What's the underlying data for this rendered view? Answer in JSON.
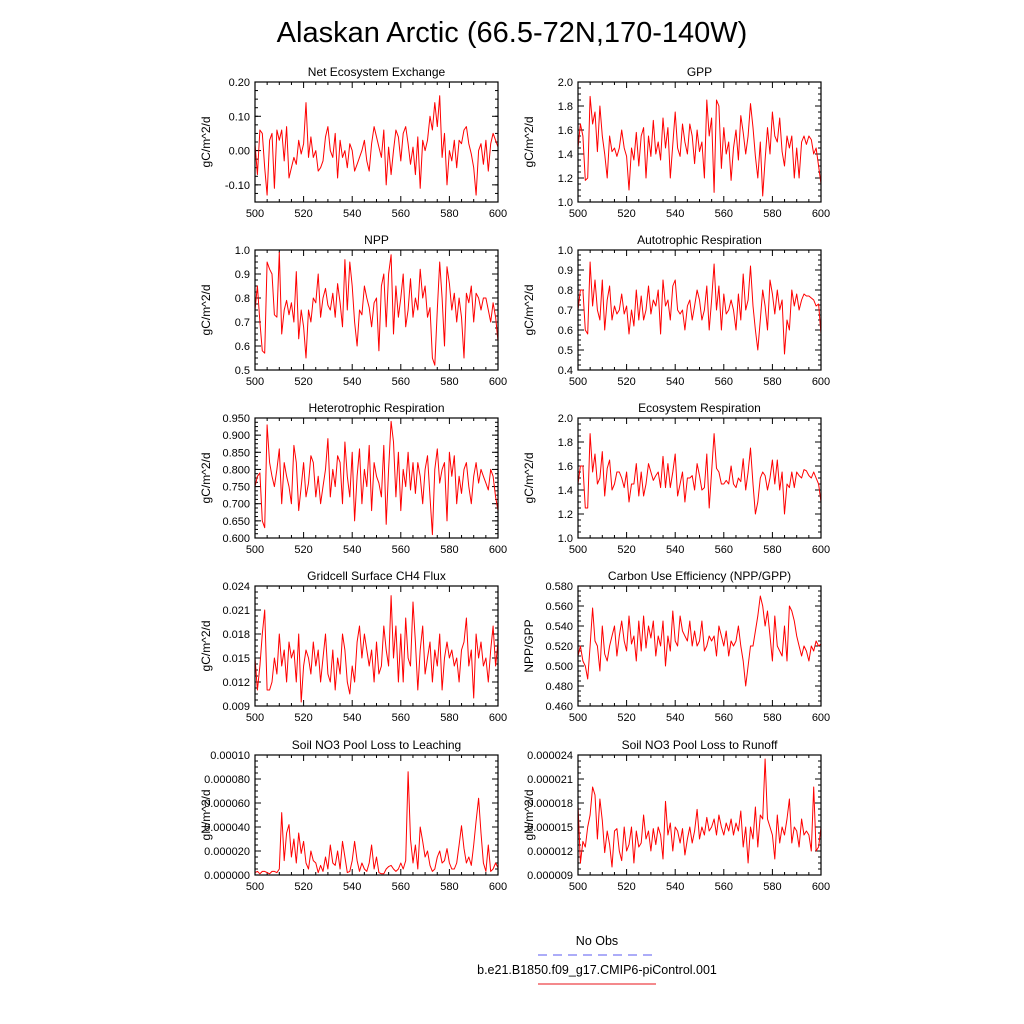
{
  "title": "Alaskan Arctic (66.5-72N,170-140W)",
  "legend": [
    {
      "label": "No Obs",
      "color": "#5a5af0",
      "dash": true
    },
    {
      "label": "b.e21.B1850.f09_g17.CMIP6-piControl.001",
      "color": "#e8131a",
      "dash": false
    }
  ],
  "line_color": "#ff0000",
  "chart_data": [
    {
      "type": "line",
      "title": "Net Ecosystem Exchange",
      "ylabel": "gC/m^2/d",
      "xlim": [
        500,
        600
      ],
      "ylim": [
        -0.15,
        0.2
      ],
      "xticks": [
        "500",
        "520",
        "540",
        "560",
        "580",
        "600"
      ],
      "yticks": [
        "-0.10",
        "0.00",
        "0.10",
        "0.20"
      ],
      "x0": 500,
      "values": [
        0.02,
        -0.07,
        0.06,
        0.05,
        -0.05,
        -0.13,
        0.03,
        0.05,
        -0.11,
        0.06,
        0.03,
        0.06,
        -0.03,
        0.07,
        -0.08,
        -0.05,
        -0.02,
        -0.04,
        0.03,
        -0.01,
        0.02,
        0.14,
        -0.02,
        0.04,
        -0.02,
        0.0,
        -0.06,
        -0.05,
        -0.03,
        0.04,
        0.07,
        0.0,
        -0.02,
        0.05,
        -0.08,
        0.03,
        -0.02,
        0.0,
        -0.05,
        0.02,
        0.0,
        -0.06,
        -0.04,
        -0.02,
        0.0,
        0.03,
        -0.03,
        -0.06,
        0.02,
        0.07,
        0.04,
        0.01,
        -0.02,
        0.06,
        -0.1,
        0.01,
        -0.07,
        0.0,
        0.06,
        0.04,
        -0.03,
        0.05,
        0.07,
        0.02,
        -0.04,
        0.01,
        -0.07,
        0.04,
        -0.11,
        0.03,
        0.0,
        0.03,
        0.1,
        0.06,
        0.14,
        0.07,
        0.16,
        -0.02,
        0.05,
        -0.1,
        0.0,
        -0.03,
        0.03,
        -0.05,
        0.03,
        0.02,
        0.06,
        0.07,
        0.02,
        -0.01,
        -0.05,
        -0.13,
        0.0,
        0.02,
        -0.04,
        0.03,
        -0.06,
        0.02,
        0.05,
        0.03,
        0.01
      ]
    },
    {
      "type": "line",
      "title": "GPP",
      "ylabel": "gC/m^2/d",
      "xlim": [
        500,
        600
      ],
      "ylim": [
        1.0,
        2.0
      ],
      "xticks": [
        "500",
        "520",
        "540",
        "560",
        "580",
        "600"
      ],
      "yticks": [
        "1.0",
        "1.2",
        "1.4",
        "1.6",
        "1.8",
        "2.0"
      ],
      "x0": 500,
      "values": [
        1.45,
        1.65,
        1.55,
        1.18,
        1.2,
        1.88,
        1.65,
        1.75,
        1.42,
        1.8,
        1.55,
        1.4,
        1.2,
        1.55,
        1.42,
        1.45,
        1.38,
        1.45,
        1.6,
        1.45,
        1.38,
        1.1,
        1.45,
        1.35,
        1.58,
        1.3,
        1.55,
        1.62,
        1.2,
        1.55,
        1.38,
        1.68,
        1.4,
        1.5,
        1.35,
        1.7,
        1.45,
        1.62,
        1.2,
        1.48,
        1.75,
        1.45,
        1.38,
        1.65,
        1.5,
        1.4,
        1.65,
        1.55,
        1.32,
        1.6,
        1.42,
        1.5,
        1.2,
        1.85,
        1.55,
        1.7,
        1.08,
        1.85,
        1.8,
        1.28,
        1.62,
        1.4,
        1.5,
        1.18,
        1.45,
        1.6,
        1.35,
        1.72,
        1.58,
        1.4,
        1.55,
        1.82,
        1.62,
        1.38,
        1.2,
        1.5,
        1.05,
        1.35,
        1.62,
        1.4,
        1.75,
        1.55,
        1.5,
        1.7,
        1.42,
        1.3,
        1.55,
        1.45,
        1.55,
        1.2,
        1.45,
        1.2,
        1.5,
        1.55,
        1.48,
        1.55,
        1.52,
        1.4,
        1.45,
        1.3,
        1.15
      ]
    },
    {
      "type": "line",
      "title": "NPP",
      "ylabel": "gC/m^2/d",
      "xlim": [
        500,
        600
      ],
      "ylim": [
        0.5,
        1.0
      ],
      "xticks": [
        "500",
        "520",
        "540",
        "560",
        "580",
        "600"
      ],
      "yticks": [
        "0.5",
        "0.6",
        "0.7",
        "0.8",
        "0.9",
        "1.0"
      ],
      "x0": 500,
      "values": [
        0.75,
        0.85,
        0.7,
        0.58,
        0.57,
        0.95,
        0.92,
        0.9,
        0.73,
        0.72,
        0.99,
        0.65,
        0.75,
        0.79,
        0.73,
        0.78,
        0.7,
        0.91,
        0.63,
        0.75,
        0.68,
        0.55,
        0.75,
        0.7,
        0.8,
        0.78,
        0.9,
        0.72,
        0.8,
        0.84,
        0.77,
        0.75,
        0.82,
        0.72,
        0.86,
        0.78,
        0.68,
        0.96,
        0.75,
        0.95,
        0.85,
        0.7,
        0.6,
        0.75,
        0.73,
        0.85,
        0.8,
        0.76,
        0.68,
        0.78,
        0.8,
        0.58,
        0.85,
        0.9,
        0.68,
        0.9,
        0.98,
        0.65,
        0.85,
        0.72,
        0.8,
        0.9,
        0.68,
        0.75,
        0.88,
        0.72,
        0.8,
        0.75,
        0.92,
        0.8,
        0.85,
        0.72,
        0.76,
        0.55,
        0.52,
        0.75,
        0.95,
        0.8,
        0.6,
        0.93,
        0.86,
        0.75,
        0.82,
        0.7,
        0.8,
        0.72,
        0.55,
        0.82,
        0.78,
        0.85,
        0.7,
        0.82,
        0.8,
        0.75,
        0.8,
        0.8,
        0.75,
        0.7,
        0.78,
        0.72,
        0.62
      ]
    },
    {
      "type": "line",
      "title": "Autotrophic Respiration",
      "ylabel": "gC/m^2/d",
      "xlim": [
        500,
        600
      ],
      "ylim": [
        0.4,
        1.0
      ],
      "xticks": [
        "500",
        "520",
        "540",
        "560",
        "580",
        "600"
      ],
      "yticks": [
        "0.4",
        "0.5",
        "0.6",
        "0.7",
        "0.8",
        "0.9",
        "1.0"
      ],
      "x0": 500,
      "values": [
        0.7,
        0.8,
        0.8,
        0.6,
        0.58,
        0.94,
        0.72,
        0.85,
        0.7,
        0.65,
        0.85,
        0.6,
        0.75,
        0.82,
        0.65,
        0.72,
        0.68,
        0.7,
        0.78,
        0.68,
        0.72,
        0.58,
        0.7,
        0.62,
        0.8,
        0.65,
        0.77,
        0.65,
        0.7,
        0.82,
        0.68,
        0.75,
        0.72,
        0.8,
        0.58,
        0.85,
        0.72,
        0.75,
        0.65,
        0.82,
        0.85,
        0.7,
        0.68,
        0.7,
        0.6,
        0.72,
        0.75,
        0.65,
        0.72,
        0.8,
        0.75,
        0.65,
        0.7,
        0.82,
        0.6,
        0.75,
        0.93,
        0.7,
        0.82,
        0.6,
        0.78,
        0.68,
        0.7,
        0.75,
        0.7,
        0.6,
        0.78,
        0.65,
        0.88,
        0.7,
        0.75,
        0.92,
        0.72,
        0.6,
        0.5,
        0.65,
        0.8,
        0.72,
        0.6,
        0.85,
        0.78,
        0.68,
        0.8,
        0.7,
        0.75,
        0.48,
        0.65,
        0.6,
        0.8,
        0.72,
        0.78,
        0.7,
        0.75,
        0.78,
        0.77,
        0.77,
        0.76,
        0.75,
        0.72,
        0.73,
        0.58
      ]
    },
    {
      "type": "line",
      "title": "Heterotrophic Respiration",
      "ylabel": "gC/m^2/d",
      "xlim": [
        500,
        600
      ],
      "ylim": [
        0.6,
        0.95
      ],
      "xticks": [
        "500",
        "520",
        "540",
        "560",
        "580",
        "600"
      ],
      "yticks": [
        "0.600",
        "0.650",
        "0.700",
        "0.750",
        "0.800",
        "0.850",
        "0.900",
        "0.950"
      ],
      "x0": 500,
      "values": [
        0.75,
        0.78,
        0.79,
        0.65,
        0.63,
        0.93,
        0.82,
        0.78,
        0.75,
        0.8,
        0.86,
        0.7,
        0.82,
        0.78,
        0.75,
        0.7,
        0.87,
        0.82,
        0.68,
        0.75,
        0.82,
        0.72,
        0.76,
        0.84,
        0.82,
        0.72,
        0.78,
        0.7,
        0.75,
        0.8,
        0.89,
        0.72,
        0.8,
        0.75,
        0.84,
        0.82,
        0.7,
        0.88,
        0.78,
        0.72,
        0.85,
        0.65,
        0.78,
        0.86,
        0.7,
        0.8,
        0.75,
        0.87,
        0.68,
        0.82,
        0.78,
        0.76,
        0.72,
        0.87,
        0.64,
        0.8,
        0.94,
        0.88,
        0.72,
        0.85,
        0.68,
        0.8,
        0.75,
        0.85,
        0.74,
        0.82,
        0.73,
        0.82,
        0.78,
        0.7,
        0.8,
        0.84,
        0.72,
        0.61,
        0.8,
        0.86,
        0.76,
        0.8,
        0.82,
        0.65,
        0.85,
        0.78,
        0.84,
        0.7,
        0.78,
        0.73,
        0.8,
        0.82,
        0.75,
        0.7,
        0.78,
        0.82,
        0.76,
        0.8,
        0.78,
        0.76,
        0.74,
        0.8,
        0.78,
        0.72,
        0.68
      ]
    },
    {
      "type": "line",
      "title": "Ecosystem Respiration",
      "ylabel": "gC/m^2/d",
      "xlim": [
        500,
        600
      ],
      "ylim": [
        1.0,
        2.0
      ],
      "xticks": [
        "500",
        "520",
        "540",
        "560",
        "580",
        "600"
      ],
      "yticks": [
        "1.0",
        "1.2",
        "1.4",
        "1.6",
        "1.8",
        "2.0"
      ],
      "x0": 500,
      "values": [
        1.45,
        1.6,
        1.6,
        1.25,
        1.25,
        1.87,
        1.55,
        1.7,
        1.45,
        1.5,
        1.72,
        1.35,
        1.58,
        1.65,
        1.4,
        1.45,
        1.55,
        1.55,
        1.5,
        1.42,
        1.55,
        1.3,
        1.45,
        1.45,
        1.62,
        1.35,
        1.55,
        1.35,
        1.45,
        1.62,
        1.55,
        1.48,
        1.52,
        1.55,
        1.42,
        1.68,
        1.42,
        1.62,
        1.42,
        1.55,
        1.7,
        1.35,
        1.45,
        1.55,
        1.3,
        1.5,
        1.5,
        1.52,
        1.4,
        1.62,
        1.52,
        1.4,
        1.42,
        1.7,
        1.25,
        1.55,
        1.87,
        1.58,
        1.55,
        1.45,
        1.45,
        1.48,
        1.45,
        1.6,
        1.45,
        1.42,
        1.5,
        1.47,
        1.66,
        1.4,
        1.55,
        1.75,
        1.45,
        1.2,
        1.3,
        1.5,
        1.55,
        1.52,
        1.4,
        1.5,
        1.65,
        1.45,
        1.65,
        1.4,
        1.55,
        1.2,
        1.45,
        1.42,
        1.55,
        1.42,
        1.55,
        1.52,
        1.5,
        1.57,
        1.56,
        1.52,
        1.5,
        1.55,
        1.5,
        1.45,
        1.3
      ]
    },
    {
      "type": "line",
      "title": "Gridcell Surface CH4 Flux",
      "ylabel": "gC/m^2/d",
      "xlim": [
        500,
        600
      ],
      "ylim": [
        0.009,
        0.024
      ],
      "xticks": [
        "500",
        "520",
        "540",
        "560",
        "580",
        "600"
      ],
      "yticks": [
        "0.009",
        "0.012",
        "0.015",
        "0.018",
        "0.021",
        "0.024"
      ],
      "x0": 500,
      "values": [
        0.015,
        0.011,
        0.014,
        0.018,
        0.021,
        0.011,
        0.011,
        0.012,
        0.015,
        0.013,
        0.018,
        0.014,
        0.016,
        0.012,
        0.017,
        0.015,
        0.016,
        0.012,
        0.018,
        0.0095,
        0.014,
        0.016,
        0.015,
        0.013,
        0.017,
        0.014,
        0.016,
        0.012,
        0.015,
        0.018,
        0.013,
        0.012,
        0.016,
        0.011,
        0.015,
        0.013,
        0.018,
        0.016,
        0.012,
        0.0105,
        0.014,
        0.012,
        0.017,
        0.019,
        0.015,
        0.018,
        0.016,
        0.014,
        0.016,
        0.012,
        0.017,
        0.013,
        0.014,
        0.019,
        0.016,
        0.014,
        0.0228,
        0.015,
        0.019,
        0.012,
        0.018,
        0.012,
        0.02,
        0.015,
        0.014,
        0.022,
        0.017,
        0.011,
        0.016,
        0.019,
        0.013,
        0.015,
        0.017,
        0.012,
        0.016,
        0.014,
        0.018,
        0.011,
        0.015,
        0.017,
        0.015,
        0.016,
        0.014,
        0.015,
        0.012,
        0.016,
        0.017,
        0.02,
        0.014,
        0.016,
        0.01,
        0.018,
        0.015,
        0.017,
        0.014,
        0.015,
        0.012,
        0.016,
        0.019,
        0.014,
        0.017
      ]
    },
    {
      "type": "line",
      "title": "Carbon Use Efficiency (NPP/GPP)",
      "ylabel": "NPP/GPP",
      "xlim": [
        500,
        600
      ],
      "ylim": [
        0.46,
        0.58
      ],
      "xticks": [
        "500",
        "520",
        "540",
        "560",
        "580",
        "600"
      ],
      "yticks": [
        "0.460",
        "0.480",
        "0.500",
        "0.520",
        "0.540",
        "0.560",
        "0.580"
      ],
      "x0": 500,
      "values": [
        0.51,
        0.52,
        0.505,
        0.5,
        0.487,
        0.52,
        0.558,
        0.525,
        0.52,
        0.495,
        0.54,
        0.512,
        0.505,
        0.52,
        0.53,
        0.54,
        0.51,
        0.53,
        0.545,
        0.525,
        0.515,
        0.55,
        0.522,
        0.53,
        0.505,
        0.545,
        0.515,
        0.55,
        0.518,
        0.54,
        0.528,
        0.545,
        0.51,
        0.53,
        0.52,
        0.545,
        0.5,
        0.53,
        0.515,
        0.555,
        0.525,
        0.52,
        0.55,
        0.535,
        0.53,
        0.525,
        0.545,
        0.52,
        0.535,
        0.52,
        0.525,
        0.545,
        0.515,
        0.52,
        0.53,
        0.525,
        0.53,
        0.51,
        0.54,
        0.53,
        0.52,
        0.535,
        0.51,
        0.525,
        0.52,
        0.525,
        0.54,
        0.52,
        0.505,
        0.48,
        0.5,
        0.52,
        0.52,
        0.535,
        0.55,
        0.57,
        0.56,
        0.54,
        0.555,
        0.53,
        0.505,
        0.55,
        0.52,
        0.515,
        0.51,
        0.54,
        0.505,
        0.56,
        0.555,
        0.545,
        0.53,
        0.52,
        0.51,
        0.52,
        0.515,
        0.505,
        0.52,
        0.515,
        0.525,
        0.52,
        0.522
      ]
    },
    {
      "type": "line",
      "title": "Soil NO3 Pool Loss to Leaching",
      "ylabel": "gN/m^2/d",
      "xlim": [
        500,
        600
      ],
      "ylim": [
        0,
        0.0001
      ],
      "xticks": [
        "500",
        "520",
        "540",
        "560",
        "580",
        "600"
      ],
      "yticks": [
        "0.000000",
        "0.000020",
        "0.000040",
        "0.000060",
        "0.000080",
        "0.00010"
      ],
      "x0": 500,
      "values": [
        2e-06,
        3e-06,
        1e-06,
        3e-06,
        3e-06,
        2e-06,
        1e-06,
        3e-06,
        3e-06,
        2e-06,
        5e-06,
        5.2e-05,
        1.2e-05,
        3.5e-05,
        4.2e-05,
        1.5e-05,
        3e-05,
        1e-05,
        3.5e-05,
        1.8e-05,
        2.8e-05,
        1e-05,
        5e-06,
        2e-05,
        1.2e-05,
        1e-05,
        2e-06,
        8e-06,
        3e-06,
        1.5e-05,
        5e-06,
        2.5e-05,
        1e-05,
        8e-06,
        2e-05,
        5e-06,
        2.8e-05,
        1.5e-05,
        2e-06,
        3e-06,
        1.2e-05,
        2.8e-05,
        1.2e-05,
        3e-06,
        1e-05,
        5e-06,
        3e-06,
        1e-05,
        2.5e-05,
        5e-06,
        1.5e-05,
        2e-06,
        1e-06,
        1e-06,
        5e-06,
        7e-06,
        8e-06,
        5e-06,
        3e-06,
        5e-06,
        1e-05,
        5e-06,
        1.2e-05,
        8.6e-05,
        3e-05,
        1e-05,
        2.5e-05,
        5e-06,
        4e-05,
        2.8e-05,
        1.5e-05,
        2e-05,
        8e-06,
        3e-06,
        5e-06,
        1.5e-05,
        2e-05,
        1e-05,
        1.2e-05,
        2.2e-05,
        1e-05,
        5e-06,
        5e-06,
        1e-05,
        2.5e-05,
        4.1e-05,
        2.2e-05,
        1e-05,
        1.5e-05,
        8e-06,
        2.5e-05,
        4.5e-05,
        6.4e-05,
        3.5e-05,
        1e-05,
        3e-06,
        2.5e-05,
        3e-06,
        5e-06,
        1e-05,
        6e-06
      ]
    },
    {
      "type": "line",
      "title": "Soil NO3 Pool Loss to Runoff",
      "ylabel": "gN/m^2/d",
      "xlim": [
        500,
        600
      ],
      "ylim": [
        9e-06,
        2.4e-05
      ],
      "xticks": [
        "500",
        "520",
        "540",
        "560",
        "580",
        "600"
      ],
      "yticks": [
        "0.000009",
        "0.000012",
        "0.000015",
        "0.000018",
        "0.000021",
        "0.000024"
      ],
      "x0": 500,
      "values": [
        1.78e-05,
        1.05e-05,
        1.32e-05,
        1.25e-05,
        1.5e-05,
        1.65e-05,
        2e-05,
        1.9e-05,
        1.35e-05,
        1.85e-05,
        1.58e-05,
        1.18e-05,
        1.45e-05,
        1.28e-05,
        1e-05,
        1.45e-05,
        1.48e-05,
        1.2e-05,
        1.08e-05,
        1.5e-05,
        1.2e-05,
        1.28e-05,
        1.5e-05,
        1.05e-05,
        1.45e-05,
        1.25e-05,
        1.3e-05,
        1.65e-05,
        1.35e-05,
        1.45e-05,
        1.2e-05,
        1.48e-05,
        1.28e-05,
        1.5e-05,
        1.4e-05,
        1.1e-05,
        1.82e-05,
        1.4e-05,
        1.55e-05,
        1.2e-05,
        1.5e-05,
        1.45e-05,
        1.3e-05,
        1.48e-05,
        1.15e-05,
        1.35e-05,
        1.5e-05,
        1.3e-05,
        1.45e-05,
        1.72e-05,
        1.35e-05,
        1.5e-05,
        1.4e-05,
        1.62e-05,
        1.45e-05,
        1.5e-05,
        1.6e-05,
        1.4e-05,
        1.65e-05,
        1.5e-05,
        1.4e-05,
        1.55e-05,
        1.45e-05,
        1.6e-05,
        1.4e-05,
        1.55e-05,
        1.45e-05,
        1.7e-05,
        1.25e-05,
        1.5e-05,
        1.05e-05,
        1.5e-05,
        1.35e-05,
        1.75e-05,
        1.25e-05,
        1.65e-05,
        1.6e-05,
        2.35e-05,
        1.6e-05,
        1.5e-05,
        1.4e-05,
        1.1e-05,
        1.65e-05,
        1.3e-05,
        1.5e-05,
        1.4e-05,
        1.6e-05,
        1.85e-05,
        1.3e-05,
        1.5e-05,
        1.45e-05,
        1.25e-05,
        1.6e-05,
        1.4e-05,
        1.45e-05,
        1.4e-05,
        1.2e-05,
        2e-05,
        1.2e-05,
        1.25e-05,
        1.5e-05
      ]
    }
  ]
}
